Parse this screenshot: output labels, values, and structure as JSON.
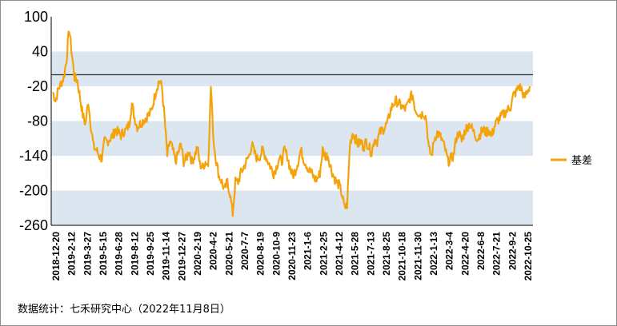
{
  "chart_data": {
    "type": "line",
    "title": "",
    "xlabel": "",
    "ylabel": "",
    "ylim": [
      -260,
      100
    ],
    "y_ticks": [
      100,
      40,
      -20,
      -80,
      -140,
      -200,
      -260
    ],
    "x_tick_labels": [
      "2018-12-20",
      "2019-2-12",
      "2019-3-27",
      "2019-5-15",
      "2019-6-28",
      "2019-8-12",
      "2019-9-25",
      "2019-11-14",
      "2019-12-27",
      "2020-2-19",
      "2020-4-2",
      "2020-5-21",
      "2020-7-7",
      "2020-8-19",
      "2020-10-9",
      "2020-11-23",
      "2021-1-6",
      "2021-2-25",
      "2021-4-12",
      "2021-5-28",
      "2021-7-13",
      "2021-8-25",
      "2021-10-18",
      "2021-11-30",
      "2022-1-13",
      "2022-3-4",
      "2022-4-20",
      "2022-6-8",
      "2022-7-21",
      "2022-9-2",
      "2022-10-25"
    ],
    "bands": [
      [
        -20,
        40
      ],
      [
        -140,
        -80
      ],
      [
        -260,
        -200
      ]
    ],
    "reference_line": 0,
    "band_color": "#dce6f0",
    "line_color": "#f5a30a",
    "series": [
      {
        "name": "基差",
        "values": [
          -30,
          -45,
          -25,
          -15,
          -5,
          25,
          80,
          35,
          -5,
          -10,
          -40,
          -70,
          -85,
          -45,
          -90,
          -125,
          -130,
          -140,
          -145,
          -115,
          -115,
          -110,
          -105,
          -95,
          -100,
          -105,
          -98,
          -95,
          -85,
          -50,
          -75,
          -90,
          -85,
          -80,
          -75,
          -70,
          -65,
          -45,
          -25,
          -10,
          -20,
          -75,
          -140,
          -115,
          -130,
          -150,
          -135,
          -120,
          -150,
          -145,
          -130,
          -150,
          -140,
          -125,
          -155,
          -160,
          -150,
          -155,
          -20,
          -115,
          -150,
          -175,
          -185,
          -200,
          -185,
          -205,
          -240,
          -185,
          -185,
          -170,
          -160,
          -150,
          -140,
          -120,
          -135,
          -145,
          -140,
          -130,
          -140,
          -150,
          -160,
          -170,
          -160,
          -145,
          -150,
          -130,
          -140,
          -160,
          -175,
          -165,
          -150,
          -130,
          -145,
          -155,
          -165,
          -170,
          -180,
          -180,
          -170,
          -130,
          -140,
          -140,
          -160,
          -175,
          -185,
          -190,
          -205,
          -230,
          -225,
          -120,
          -100,
          -110,
          -120,
          -115,
          -125,
          -115,
          -125,
          -135,
          -110,
          -115,
          -100,
          -95,
          -90,
          -80,
          -60,
          -50,
          -45,
          -50,
          -55,
          -60,
          -55,
          -40,
          -35,
          -60,
          -65,
          -70,
          -65,
          -75,
          -130,
          -140,
          -110,
          -100,
          -105,
          -115,
          -130,
          -150,
          -145,
          -140,
          -110,
          -100,
          -115,
          -100,
          -90,
          -85,
          -95,
          -105,
          -110,
          -100,
          -95,
          -100,
          -95,
          -105,
          -90,
          -80,
          -75,
          -70,
          -65,
          -60,
          -55,
          -35,
          -30,
          -20,
          -25,
          -40,
          -30,
          -20
        ]
      }
    ],
    "legend": {
      "position": "right",
      "label": "基差"
    }
  },
  "footer": {
    "source_note": "数据统计：七禾研究中心（2022年11月8日）"
  }
}
